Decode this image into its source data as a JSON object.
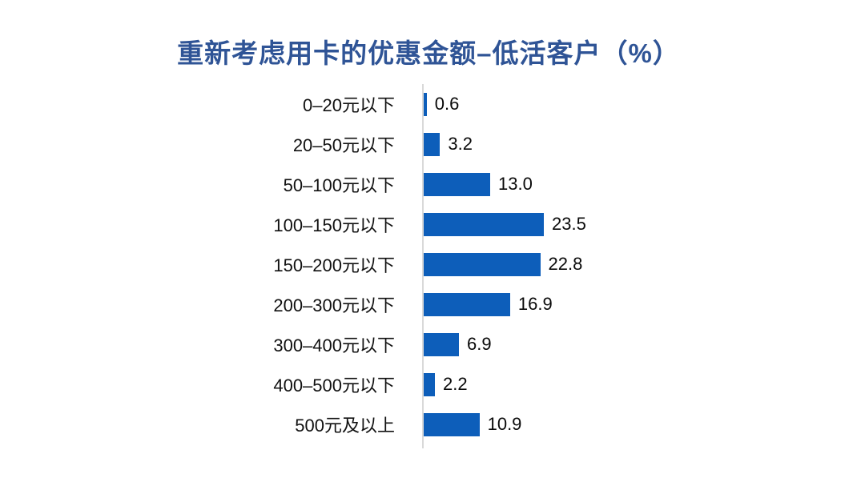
{
  "title": "重新考虑用卡的优惠金额–低活客户（%）",
  "colors": {
    "title": "#2F5496",
    "bar": "#0D5EBA",
    "axis": "#D9D9D9",
    "label_text": "#111111",
    "value_text": "#0A0A0A",
    "background": "#FFFFFF"
  },
  "chart_data": {
    "type": "bar",
    "orientation": "horizontal",
    "title": "重新考虑用卡的优惠金额–低活客户（%）",
    "categories": [
      "0–20元以下",
      "20–50元以下",
      "50–100元以下",
      "100–150元以下",
      "150–200元以下",
      "200–300元以下",
      "300–400元以下",
      "400–500元以下",
      "500元及以上"
    ],
    "values": [
      0.6,
      3.2,
      13.0,
      23.5,
      22.8,
      16.9,
      6.9,
      2.2,
      10.9
    ],
    "value_labels": [
      "0.6",
      "3.2",
      "13.0",
      "23.5",
      "22.8",
      "16.9",
      "6.9",
      "2.2",
      "10.9"
    ],
    "xlabel": "",
    "ylabel": "",
    "xlim": [
      0,
      23.5
    ],
    "grid": false,
    "legend": false,
    "data_labels_position": "outside-end",
    "unit": "%"
  }
}
